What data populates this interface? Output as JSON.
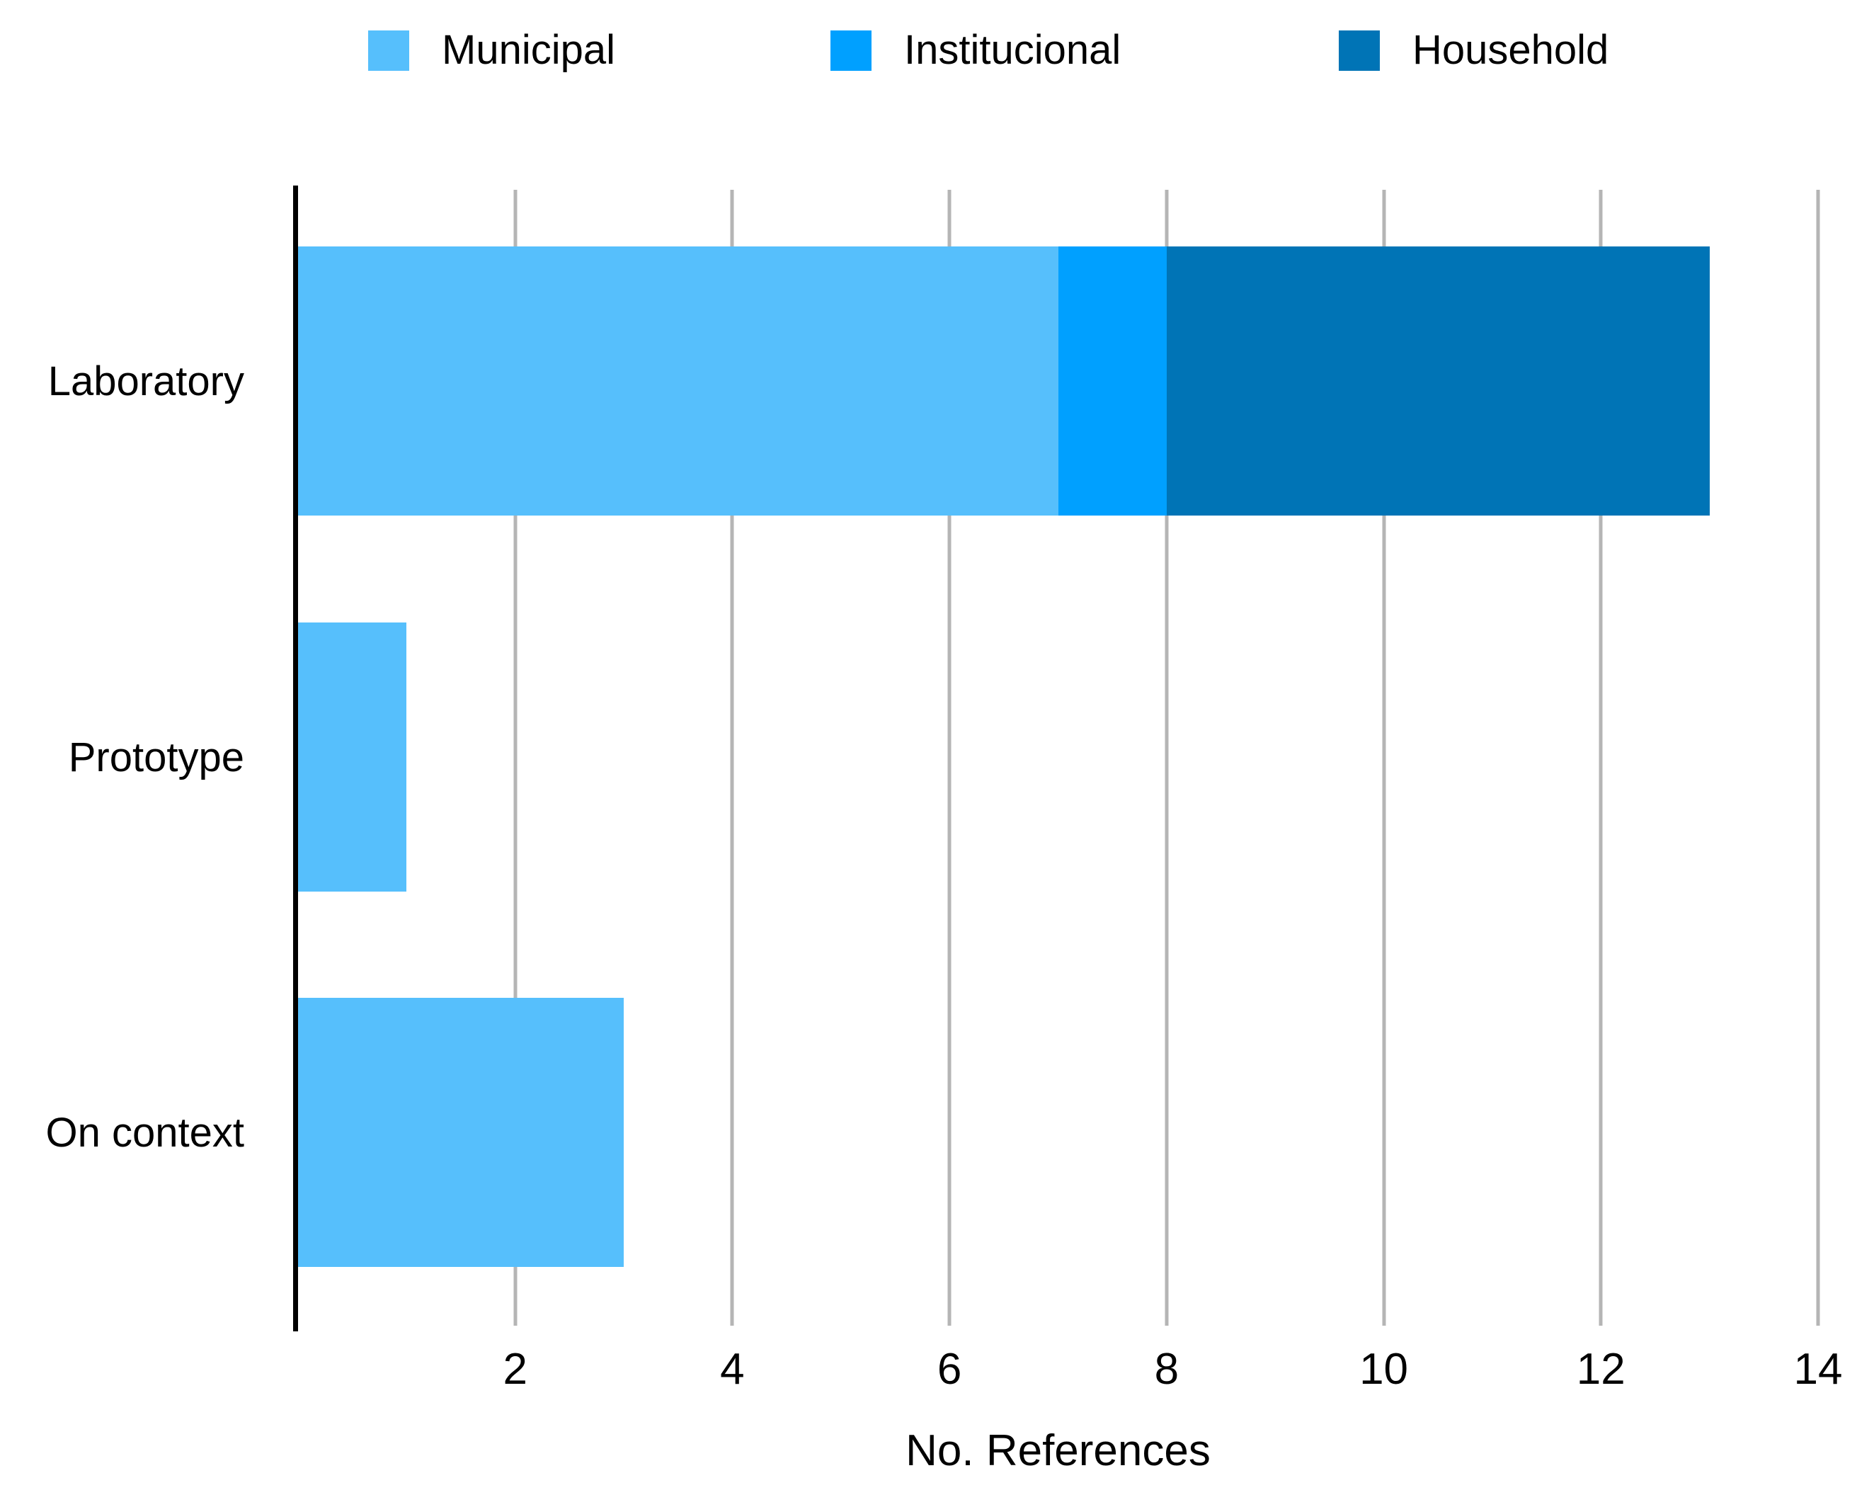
{
  "chart_data": {
    "type": "bar",
    "orientation": "horizontal",
    "stacked": true,
    "title": "",
    "xlabel": "No. References",
    "ylabel": "",
    "xlim": [
      0,
      14
    ],
    "xticks": [
      2,
      4,
      6,
      8,
      10,
      12,
      14
    ],
    "grid": true,
    "legend_position": "top",
    "categories": [
      "Laboratory",
      "Prototype",
      "On context"
    ],
    "series": [
      {
        "name": "Municipal",
        "color": "#56BFFC",
        "values": [
          7,
          1,
          3
        ]
      },
      {
        "name": "Institucional",
        "color": "#00A0FF",
        "values": [
          1,
          0,
          0
        ]
      },
      {
        "name": "Household",
        "color": "#0074B6",
        "values": [
          5,
          0,
          0
        ]
      }
    ],
    "colors": {
      "gridline": "#b5b5b5",
      "axis": "#000000",
      "background": "#ffffff",
      "text": "#000000"
    }
  }
}
